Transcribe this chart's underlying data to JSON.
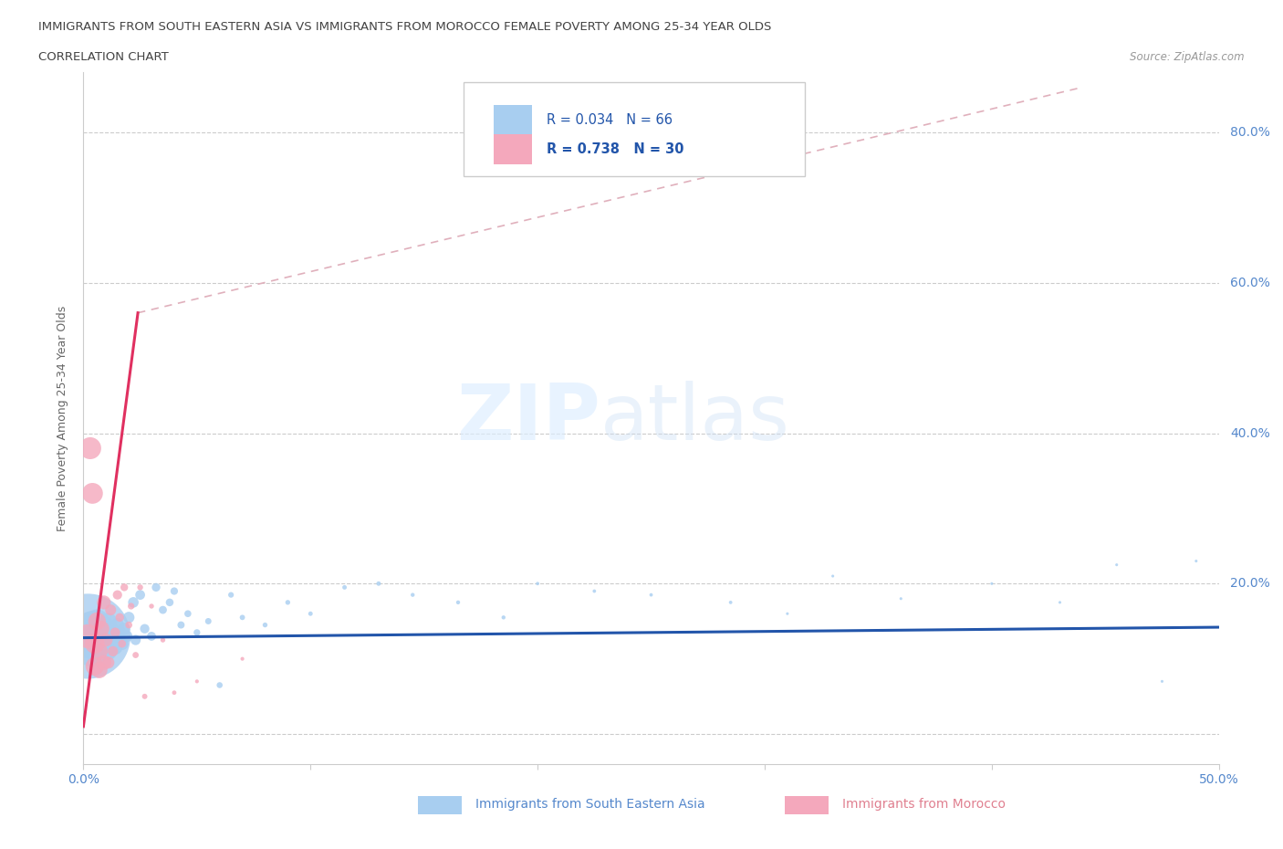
{
  "title_line1": "IMMIGRANTS FROM SOUTH EASTERN ASIA VS IMMIGRANTS FROM MOROCCO FEMALE POVERTY AMONG 25-34 YEAR OLDS",
  "title_line2": "CORRELATION CHART",
  "source_text": "Source: ZipAtlas.com",
  "ylabel": "Female Poverty Among 25-34 Year Olds",
  "xlim": [
    0.0,
    0.5
  ],
  "ylim": [
    -0.04,
    0.88
  ],
  "legend_r1": "R = 0.034",
  "legend_n1": "N = 66",
  "legend_r2": "R = 0.738",
  "legend_n2": "N = 30",
  "color_sea": "#a8cef0",
  "color_morocco": "#f4a8bc",
  "color_sea_line": "#2255aa",
  "color_morocco_line": "#e03060",
  "color_dash": "#e0b0bc",
  "background_color": "#ffffff",
  "sea_x": [
    0.002,
    0.003,
    0.003,
    0.004,
    0.004,
    0.005,
    0.005,
    0.006,
    0.006,
    0.007,
    0.007,
    0.008,
    0.008,
    0.009,
    0.009,
    0.01,
    0.01,
    0.011,
    0.011,
    0.012,
    0.012,
    0.013,
    0.014,
    0.015,
    0.015,
    0.016,
    0.017,
    0.018,
    0.019,
    0.02,
    0.022,
    0.023,
    0.025,
    0.027,
    0.03,
    0.032,
    0.035,
    0.038,
    0.04,
    0.043,
    0.046,
    0.05,
    0.055,
    0.06,
    0.065,
    0.07,
    0.08,
    0.09,
    0.1,
    0.115,
    0.13,
    0.145,
    0.165,
    0.185,
    0.2,
    0.225,
    0.25,
    0.285,
    0.31,
    0.33,
    0.36,
    0.4,
    0.43,
    0.455,
    0.475,
    0.49
  ],
  "sea_y": [
    0.13,
    0.125,
    0.14,
    0.11,
    0.145,
    0.12,
    0.135,
    0.115,
    0.15,
    0.125,
    0.14,
    0.12,
    0.13,
    0.115,
    0.145,
    0.125,
    0.135,
    0.11,
    0.15,
    0.12,
    0.14,
    0.13,
    0.115,
    0.125,
    0.145,
    0.135,
    0.12,
    0.14,
    0.13,
    0.155,
    0.175,
    0.125,
    0.185,
    0.14,
    0.13,
    0.195,
    0.165,
    0.175,
    0.19,
    0.145,
    0.16,
    0.135,
    0.15,
    0.065,
    0.185,
    0.155,
    0.145,
    0.175,
    0.16,
    0.195,
    0.2,
    0.185,
    0.175,
    0.155,
    0.2,
    0.19,
    0.185,
    0.175,
    0.16,
    0.21,
    0.18,
    0.2,
    0.175,
    0.225,
    0.07,
    0.23
  ],
  "sea_size_pt": [
    1800,
    350,
    280,
    240,
    200,
    180,
    160,
    150,
    140,
    130,
    120,
    110,
    100,
    95,
    90,
    85,
    80,
    75,
    70,
    65,
    60,
    55,
    52,
    48,
    45,
    42,
    40,
    37,
    35,
    32,
    28,
    26,
    24,
    22,
    20,
    18,
    16,
    15,
    14,
    13,
    12,
    11,
    10,
    9,
    8,
    7,
    6,
    6,
    5,
    5,
    5,
    4,
    4,
    4,
    3,
    3,
    3,
    3,
    2,
    2,
    2,
    2,
    2,
    2,
    2,
    2
  ],
  "morocco_x": [
    0.002,
    0.003,
    0.004,
    0.005,
    0.005,
    0.006,
    0.007,
    0.007,
    0.008,
    0.009,
    0.009,
    0.01,
    0.011,
    0.012,
    0.013,
    0.014,
    0.015,
    0.016,
    0.017,
    0.018,
    0.02,
    0.021,
    0.023,
    0.025,
    0.027,
    0.03,
    0.035,
    0.04,
    0.05,
    0.07
  ],
  "morocco_y": [
    0.13,
    0.38,
    0.32,
    0.12,
    0.09,
    0.15,
    0.11,
    0.085,
    0.14,
    0.095,
    0.175,
    0.125,
    0.095,
    0.165,
    0.11,
    0.135,
    0.185,
    0.155,
    0.12,
    0.195,
    0.145,
    0.17,
    0.105,
    0.195,
    0.05,
    0.17,
    0.125,
    0.055,
    0.07,
    0.1
  ],
  "morocco_size_pt": [
    120,
    100,
    90,
    80,
    70,
    65,
    60,
    55,
    50,
    45,
    40,
    35,
    30,
    25,
    22,
    20,
    18,
    15,
    13,
    12,
    10,
    9,
    8,
    7,
    6,
    5,
    5,
    4,
    3,
    3
  ],
  "sea_line_x": [
    0.0,
    0.5
  ],
  "sea_line_y": [
    0.128,
    0.142
  ],
  "morocco_line_x": [
    0.0,
    0.024
  ],
  "morocco_line_y": [
    0.01,
    0.56
  ],
  "dash_line_x": [
    0.024,
    0.44
  ],
  "dash_line_y": [
    0.56,
    0.86
  ]
}
